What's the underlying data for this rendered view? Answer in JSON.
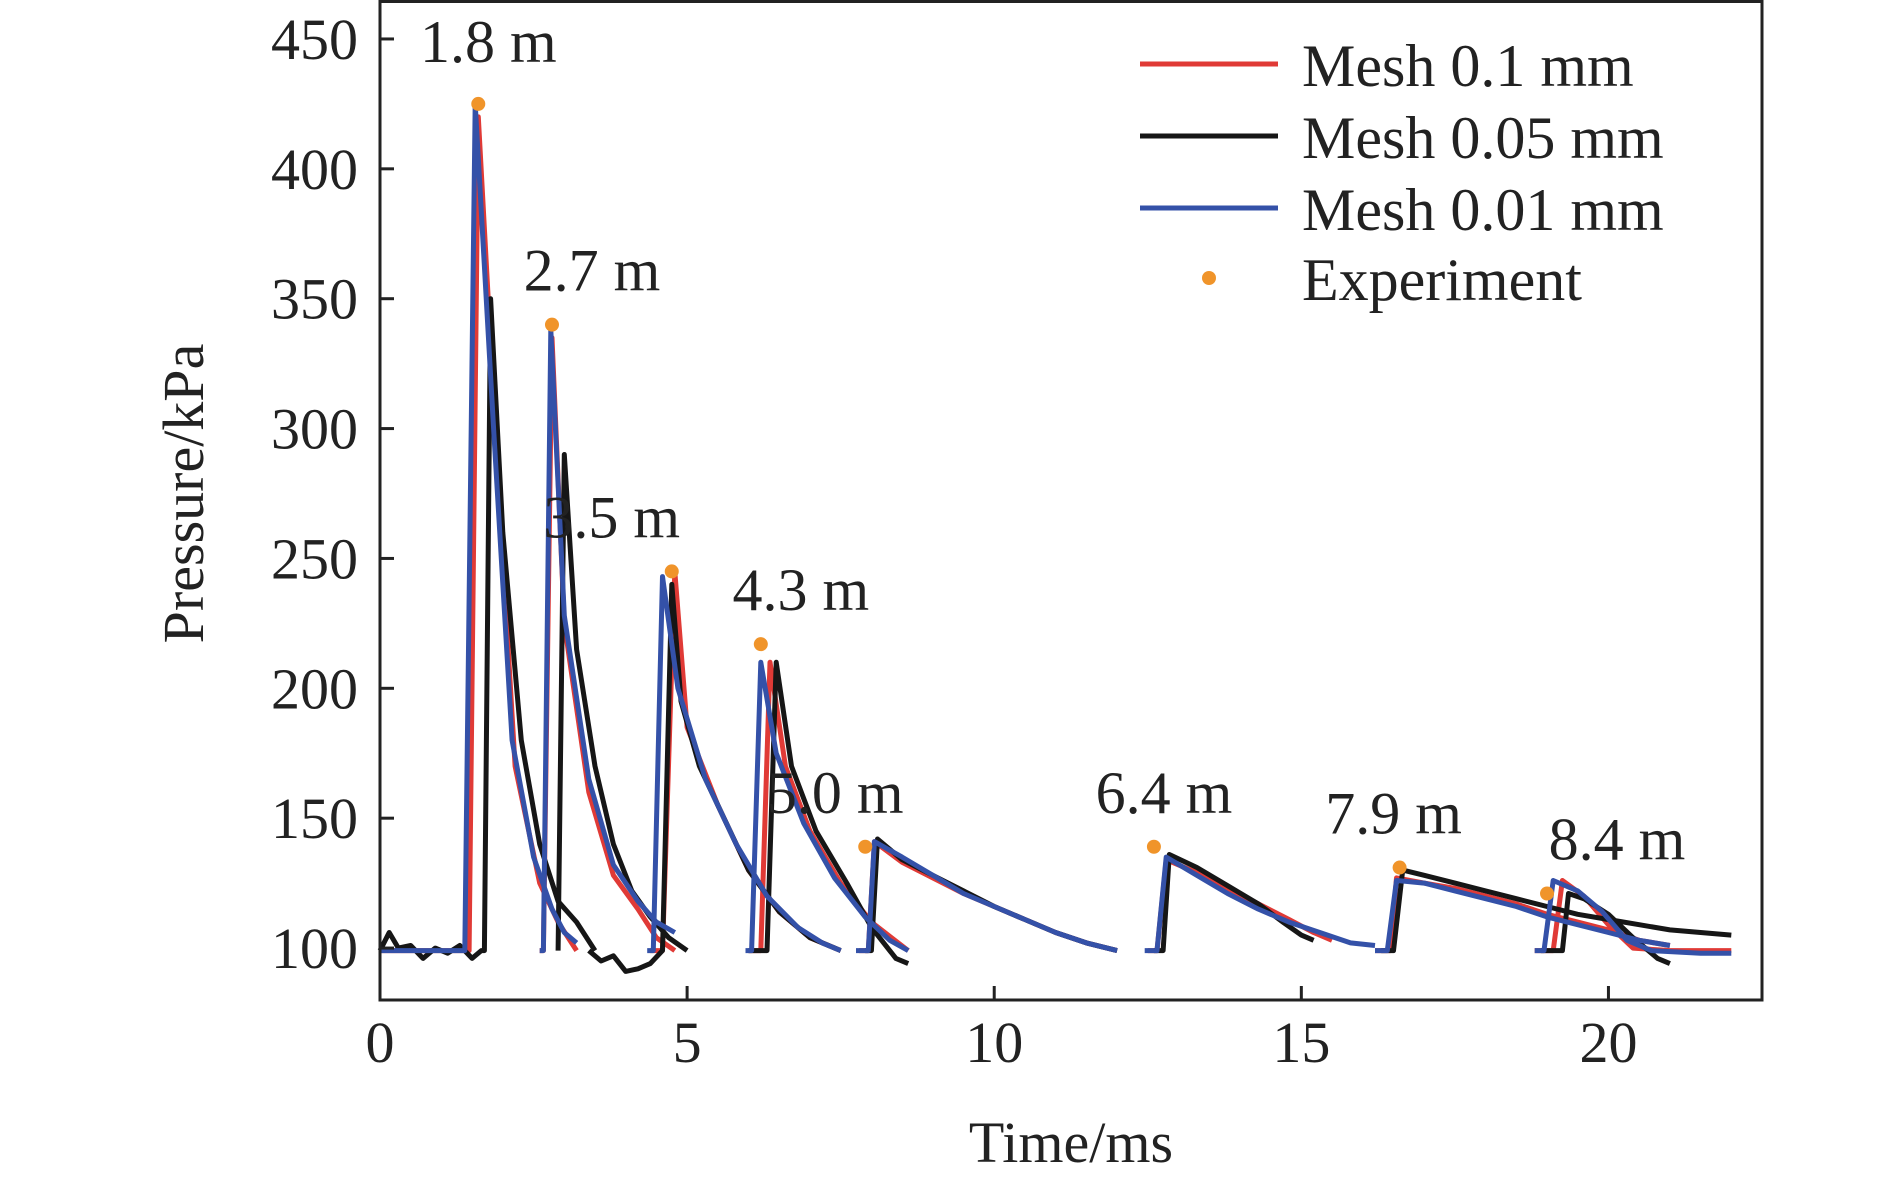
{
  "chart_data": {
    "type": "line",
    "title": "",
    "xlabel": "Time/ms",
    "ylabel": "Pressure/kPa",
    "xlim": [
      0,
      22.5
    ],
    "ylim": [
      80,
      465
    ],
    "x_ticks": [
      0,
      5,
      10,
      15,
      20
    ],
    "y_ticks": [
      100,
      150,
      200,
      250,
      300,
      350,
      400,
      450
    ],
    "grid": false,
    "legend_position": "top-right",
    "series": [
      {
        "name": "Mesh 0.1 mm",
        "color": "#e03a36",
        "segments": [
          [
            [
              0,
              99
            ],
            [
              1.4,
              99
            ],
            [
              1.45,
              99
            ],
            [
              1.6,
              420
            ],
            [
              1.9,
              290
            ],
            [
              2.2,
              170
            ],
            [
              2.6,
              125
            ],
            [
              2.9,
              110
            ],
            [
              3.2,
              99
            ]
          ],
          [
            [
              2.6,
              99
            ],
            [
              2.66,
              99
            ],
            [
              2.8,
              335
            ],
            [
              3.0,
              225
            ],
            [
              3.4,
              160
            ],
            [
              3.8,
              128
            ],
            [
              4.2,
              115
            ],
            [
              4.5,
              104
            ],
            [
              4.8,
              99
            ]
          ],
          [
            [
              4.4,
              99
            ],
            [
              4.6,
              99
            ],
            [
              4.8,
              245
            ],
            [
              5.0,
              185
            ],
            [
              5.5,
              155
            ],
            [
              6.0,
              130
            ],
            [
              6.5,
              114
            ],
            [
              7.0,
              104
            ],
            [
              7.5,
              99
            ]
          ],
          [
            [
              6.0,
              99
            ],
            [
              6.2,
              99
            ],
            [
              6.35,
              210
            ],
            [
              6.6,
              170
            ],
            [
              7.0,
              145
            ],
            [
              7.5,
              125
            ],
            [
              8.0,
              110
            ],
            [
              8.6,
              99
            ]
          ],
          [
            [
              7.8,
              99
            ],
            [
              7.95,
              99
            ],
            [
              8.05,
              141
            ],
            [
              8.5,
              133
            ],
            [
              9.0,
              127
            ],
            [
              9.5,
              121
            ],
            [
              10.0,
              116
            ],
            [
              10.5,
              111
            ],
            [
              11.0,
              106
            ],
            [
              11.5,
              102
            ],
            [
              12.0,
              99
            ]
          ],
          [
            [
              12.5,
              99
            ],
            [
              12.65,
              99
            ],
            [
              12.8,
              134
            ],
            [
              13.3,
              129
            ],
            [
              13.8,
              123
            ],
            [
              14.3,
              117
            ],
            [
              14.8,
              111
            ],
            [
              15.2,
              106
            ],
            [
              15.5,
              103
            ]
          ],
          [
            [
              16.2,
              99
            ],
            [
              16.45,
              99
            ],
            [
              16.55,
              127
            ],
            [
              17.0,
              125
            ],
            [
              17.5,
              123
            ],
            [
              18.0,
              120
            ],
            [
              18.5,
              117
            ],
            [
              19.0,
              113
            ],
            [
              19.5,
              110
            ],
            [
              20.0,
              107
            ],
            [
              20.5,
              103
            ],
            [
              21.0,
              101
            ]
          ],
          [
            [
              18.8,
              99
            ],
            [
              19.1,
              99
            ],
            [
              19.25,
              126
            ],
            [
              19.6,
              120
            ],
            [
              20.0,
              109
            ],
            [
              20.4,
              100
            ],
            [
              21.0,
              99
            ],
            [
              22.0,
              99
            ]
          ]
        ]
      },
      {
        "name": "Mesh 0.05 mm",
        "color": "#161616",
        "segments": [
          [
            [
              0,
              99
            ],
            [
              0.15,
              106
            ],
            [
              0.3,
              100
            ],
            [
              0.5,
              101
            ],
            [
              0.7,
              96
            ],
            [
              0.9,
              100
            ],
            [
              1.1,
              98
            ],
            [
              1.3,
              101
            ],
            [
              1.5,
              96
            ],
            [
              1.65,
              99
            ],
            [
              1.7,
              99
            ],
            [
              1.8,
              350
            ],
            [
              2.0,
              260
            ],
            [
              2.3,
              180
            ],
            [
              2.6,
              140
            ],
            [
              2.9,
              118
            ],
            [
              3.2,
              110
            ],
            [
              3.5,
              99
            ]
          ],
          [
            [
              2.9,
              99
            ],
            [
              3.0,
              290
            ],
            [
              3.2,
              215
            ],
            [
              3.5,
              170
            ],
            [
              3.8,
              140
            ],
            [
              4.1,
              122
            ],
            [
              4.4,
              112
            ],
            [
              4.7,
              104
            ],
            [
              5.0,
              99
            ]
          ],
          [
            [
              3.4,
              99
            ],
            [
              3.6,
              95
            ],
            [
              3.8,
              97
            ],
            [
              4.0,
              91
            ],
            [
              4.2,
              92
            ],
            [
              4.4,
              94
            ],
            [
              4.6,
              99
            ],
            [
              4.75,
              240
            ],
            [
              4.9,
              195
            ],
            [
              5.2,
              170
            ],
            [
              5.6,
              150
            ],
            [
              6.0,
              130
            ],
            [
              6.5,
              114
            ],
            [
              7.0,
              104
            ],
            [
              7.5,
              99
            ]
          ],
          [
            [
              6.0,
              99
            ],
            [
              6.3,
              99
            ],
            [
              6.45,
              210
            ],
            [
              6.7,
              170
            ],
            [
              7.1,
              145
            ],
            [
              7.6,
              125
            ],
            [
              8.0,
              108
            ],
            [
              8.4,
              96
            ],
            [
              8.6,
              94
            ]
          ],
          [
            [
              7.9,
              99
            ],
            [
              8.0,
              99
            ],
            [
              8.1,
              142
            ],
            [
              8.5,
              134
            ],
            [
              9.0,
              128
            ],
            [
              9.5,
              122
            ],
            [
              10.0,
              116
            ],
            [
              10.5,
              111
            ],
            [
              11.0,
              106
            ],
            [
              11.5,
              102
            ],
            [
              12.0,
              99
            ]
          ],
          [
            [
              12.6,
              99
            ],
            [
              12.75,
              99
            ],
            [
              12.85,
              136
            ],
            [
              13.3,
              131
            ],
            [
              13.8,
              124
            ],
            [
              14.3,
              117
            ],
            [
              14.7,
              110
            ],
            [
              15.0,
              105
            ],
            [
              15.2,
              103
            ]
          ],
          [
            [
              16.3,
              99
            ],
            [
              16.5,
              99
            ],
            [
              16.65,
              130
            ],
            [
              17.0,
              128
            ],
            [
              17.5,
              125
            ],
            [
              18.0,
              122
            ],
            [
              18.5,
              119
            ],
            [
              19.0,
              116
            ],
            [
              19.5,
              113
            ],
            [
              20.0,
              111
            ],
            [
              20.5,
              109
            ],
            [
              21.0,
              107
            ],
            [
              21.5,
              106
            ],
            [
              22.0,
              105
            ]
          ],
          [
            [
              18.9,
              99
            ],
            [
              19.25,
              99
            ],
            [
              19.35,
              121
            ],
            [
              19.6,
              119
            ],
            [
              20.0,
              113
            ],
            [
              20.4,
              104
            ],
            [
              20.8,
              96
            ],
            [
              21.0,
              94
            ]
          ]
        ]
      },
      {
        "name": "Mesh 0.01 mm",
        "color": "#3451a8",
        "segments": [
          [
            [
              0,
              99
            ],
            [
              1.3,
              99
            ],
            [
              1.38,
              99
            ],
            [
              1.55,
              425
            ],
            [
              1.85,
              300
            ],
            [
              2.15,
              180
            ],
            [
              2.5,
              135
            ],
            [
              2.8,
              115
            ],
            [
              3.0,
              106
            ],
            [
              3.2,
              102
            ]
          ],
          [
            [
              2.6,
              99
            ],
            [
              2.66,
              99
            ],
            [
              2.78,
              338
            ],
            [
              3.0,
              228
            ],
            [
              3.4,
              165
            ],
            [
              3.8,
              132
            ],
            [
              4.2,
              118
            ],
            [
              4.5,
              110
            ],
            [
              4.8,
              106
            ]
          ],
          [
            [
              4.35,
              99
            ],
            [
              4.45,
              99
            ],
            [
              4.6,
              243
            ],
            [
              4.85,
              200
            ],
            [
              5.3,
              165
            ],
            [
              5.8,
              140
            ],
            [
              6.3,
              120
            ],
            [
              6.8,
              108
            ],
            [
              7.2,
              102
            ],
            [
              7.5,
              99
            ]
          ],
          [
            [
              5.95,
              99
            ],
            [
              6.05,
              99
            ],
            [
              6.2,
              210
            ],
            [
              6.45,
              175
            ],
            [
              6.9,
              148
            ],
            [
              7.4,
              127
            ],
            [
              7.9,
              112
            ],
            [
              8.3,
              103
            ],
            [
              8.6,
              99
            ]
          ],
          [
            [
              7.75,
              99
            ],
            [
              7.95,
              99
            ],
            [
              8.05,
              141
            ],
            [
              8.5,
              135
            ],
            [
              9.0,
              128
            ],
            [
              9.5,
              121
            ],
            [
              10.0,
              116
            ],
            [
              10.5,
              111
            ],
            [
              11.0,
              106
            ],
            [
              11.5,
              102
            ],
            [
              12.0,
              99
            ]
          ],
          [
            [
              12.45,
              99
            ],
            [
              12.65,
              99
            ],
            [
              12.8,
              135
            ],
            [
              13.3,
              128
            ],
            [
              13.8,
              121
            ],
            [
              14.3,
              115
            ],
            [
              14.8,
              110
            ],
            [
              15.3,
              106
            ],
            [
              15.8,
              102
            ],
            [
              16.2,
              101
            ]
          ],
          [
            [
              16.2,
              99
            ],
            [
              16.4,
              99
            ],
            [
              16.55,
              126
            ],
            [
              17.0,
              125
            ],
            [
              17.5,
              122
            ],
            [
              18.0,
              119
            ],
            [
              18.5,
              116
            ],
            [
              19.0,
              112
            ],
            [
              19.5,
              109
            ],
            [
              20.0,
              106
            ],
            [
              20.5,
              103
            ],
            [
              21.0,
              101
            ]
          ],
          [
            [
              18.8,
              99
            ],
            [
              18.95,
              99
            ],
            [
              19.1,
              126
            ],
            [
              19.5,
              122
            ],
            [
              19.9,
              114
            ],
            [
              20.3,
              103
            ],
            [
              20.7,
              99
            ],
            [
              21.5,
              98
            ],
            [
              22.0,
              98
            ]
          ]
        ]
      }
    ],
    "experiment": {
      "name": "Experiment",
      "color": "#f0942a",
      "points": [
        {
          "x": 1.6,
          "y": 425,
          "label": "1.8 m"
        },
        {
          "x": 2.8,
          "y": 340,
          "label": "2.7 m"
        },
        {
          "x": 4.75,
          "y": 245,
          "label": "3.5 m"
        },
        {
          "x": 6.2,
          "y": 217,
          "label": "4.3 m"
        },
        {
          "x": 7.9,
          "y": 139,
          "label": "5.0 m"
        },
        {
          "x": 12.6,
          "y": 139,
          "label": "6.4 m"
        },
        {
          "x": 16.6,
          "y": 131,
          "label": "7.9 m"
        },
        {
          "x": 19.0,
          "y": 121,
          "label": "8.4 m"
        }
      ]
    }
  }
}
